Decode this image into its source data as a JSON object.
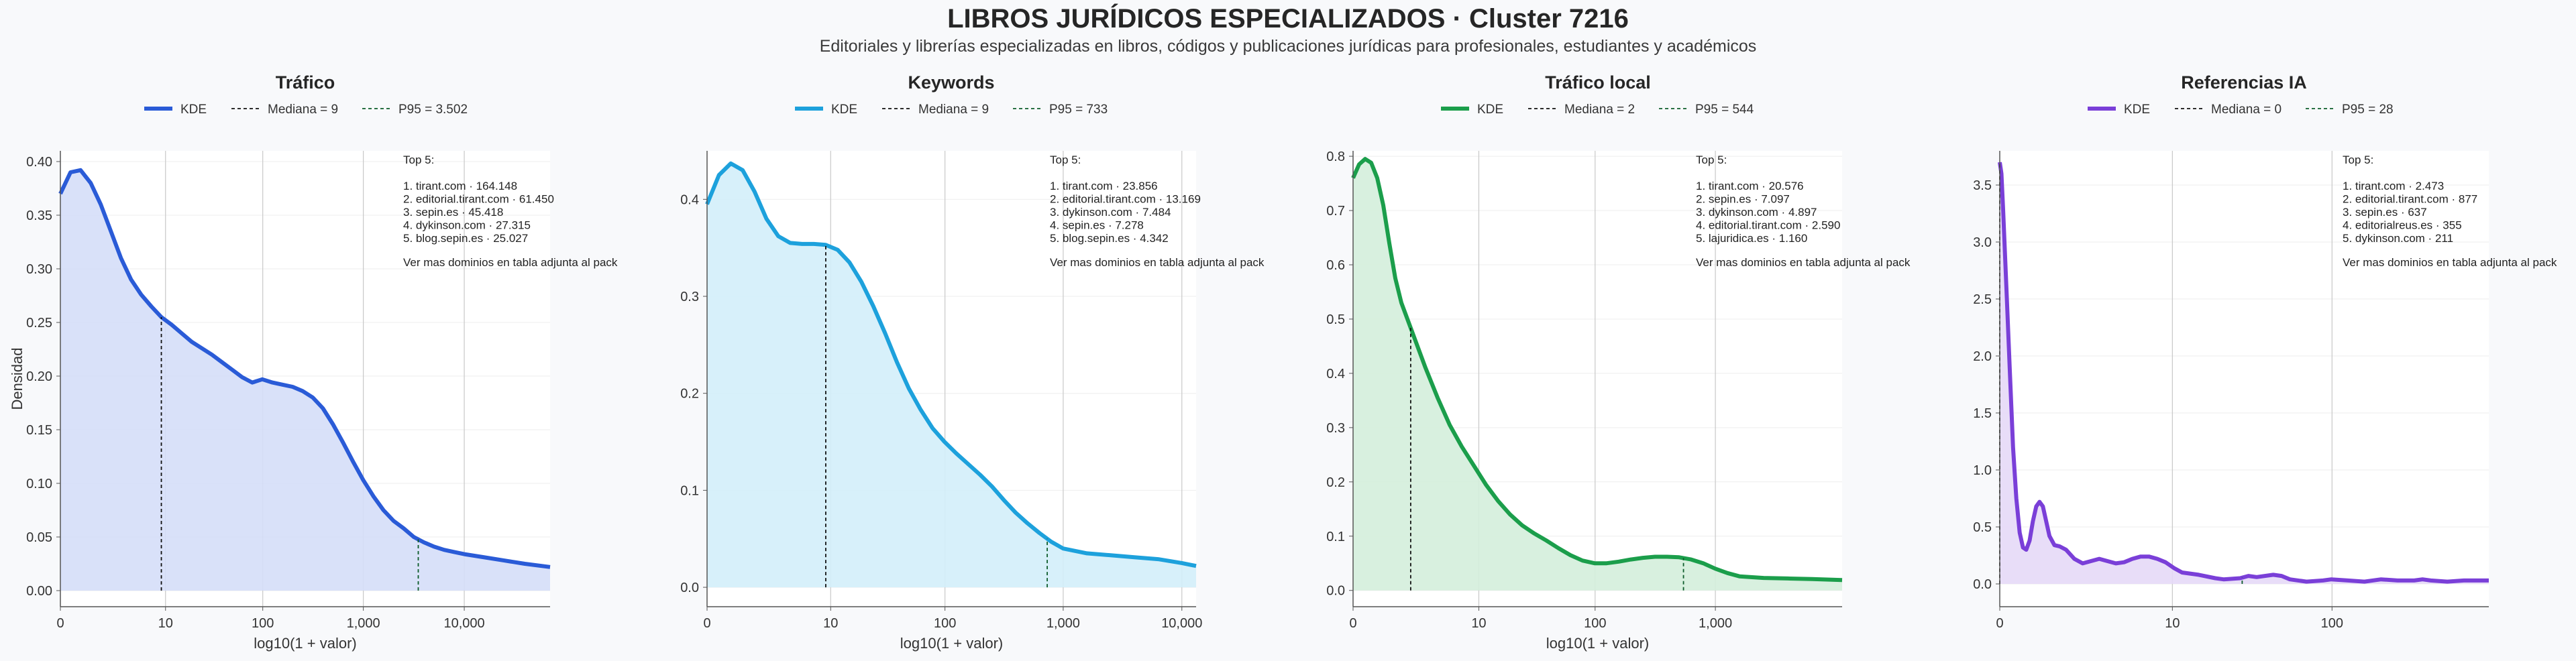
{
  "header": {
    "title": "LIBROS JURÍDICOS ESPECIALIZADOS · Cluster 7216",
    "subtitle": "Editoriales y librerías especializadas en libros, códigos y publicaciones jurídicas para profesionales, estudiantes y académicos"
  },
  "chart_data": [
    {
      "type": "area",
      "title": "Tráfico",
      "color": "#2a5bd7",
      "fill": "#d5def8",
      "xlabel": "log10(1 + valor)",
      "ylabel": "Densidad",
      "x_scale": "log10(1+x)",
      "xlim_log": [
        0,
        4.85
      ],
      "ylim": [
        -0.015,
        0.41
      ],
      "x_ticks": [
        "0",
        "10",
        "100",
        "1,000",
        "10,000"
      ],
      "y_ticks": [
        "0.00",
        "0.05",
        "0.10",
        "0.15",
        "0.20",
        "0.25",
        "0.30",
        "0.35",
        "0.40"
      ],
      "legend": {
        "kde": "KDE",
        "median": "Mediana = 9",
        "p95": "P95 = 3.502"
      },
      "median_value": 9,
      "p95_value": 3502,
      "kde_points_log": [
        [
          0,
          0.37
        ],
        [
          0.1,
          0.39
        ],
        [
          0.2,
          0.392
        ],
        [
          0.3,
          0.38
        ],
        [
          0.4,
          0.36
        ],
        [
          0.5,
          0.335
        ],
        [
          0.6,
          0.31
        ],
        [
          0.7,
          0.29
        ],
        [
          0.8,
          0.276
        ],
        [
          0.9,
          0.265
        ],
        [
          1.0,
          0.255
        ],
        [
          1.1,
          0.248
        ],
        [
          1.2,
          0.24
        ],
        [
          1.3,
          0.232
        ],
        [
          1.4,
          0.226
        ],
        [
          1.5,
          0.22
        ],
        [
          1.6,
          0.213
        ],
        [
          1.7,
          0.206
        ],
        [
          1.8,
          0.199
        ],
        [
          1.9,
          0.194
        ],
        [
          2.0,
          0.197
        ],
        [
          2.1,
          0.194
        ],
        [
          2.2,
          0.192
        ],
        [
          2.3,
          0.19
        ],
        [
          2.4,
          0.186
        ],
        [
          2.5,
          0.18
        ],
        [
          2.6,
          0.17
        ],
        [
          2.7,
          0.155
        ],
        [
          2.8,
          0.138
        ],
        [
          2.9,
          0.12
        ],
        [
          3.0,
          0.103
        ],
        [
          3.1,
          0.088
        ],
        [
          3.2,
          0.075
        ],
        [
          3.3,
          0.065
        ],
        [
          3.4,
          0.058
        ],
        [
          3.5,
          0.05
        ],
        [
          3.6,
          0.045
        ],
        [
          3.7,
          0.041
        ],
        [
          3.8,
          0.038
        ],
        [
          3.9,
          0.036
        ],
        [
          4.0,
          0.034
        ],
        [
          4.2,
          0.031
        ],
        [
          4.4,
          0.028
        ],
        [
          4.6,
          0.025
        ],
        [
          4.85,
          0.022
        ]
      ],
      "top5_title": "Top 5:",
      "top5": [
        "1. tirant.com · 164.148",
        "2. editorial.tirant.com · 61.450",
        "3. sepin.es · 45.418",
        "4. dykinson.com · 27.315",
        "5. blog.sepin.es · 25.027"
      ],
      "note": "Ver mas dominios en tabla adjunta al pack"
    },
    {
      "type": "area",
      "title": "Keywords",
      "color": "#1da1dc",
      "fill": "#d3eefa",
      "xlabel": "log10(1 + valor)",
      "ylabel": "",
      "x_scale": "log10(1+x)",
      "xlim_log": [
        0,
        4.12
      ],
      "ylim": [
        -0.02,
        0.45
      ],
      "x_ticks": [
        "0",
        "10",
        "100",
        "1,000",
        "10,000"
      ],
      "y_ticks": [
        "0.0",
        "0.1",
        "0.2",
        "0.3",
        "0.4"
      ],
      "legend": {
        "kde": "KDE",
        "median": "Mediana = 9",
        "p95": "P95 = 733"
      },
      "median_value": 9,
      "p95_value": 733,
      "kde_points_log": [
        [
          0,
          0.395
        ],
        [
          0.1,
          0.425
        ],
        [
          0.2,
          0.437
        ],
        [
          0.3,
          0.43
        ],
        [
          0.4,
          0.408
        ],
        [
          0.5,
          0.38
        ],
        [
          0.6,
          0.362
        ],
        [
          0.7,
          0.355
        ],
        [
          0.8,
          0.354
        ],
        [
          0.9,
          0.354
        ],
        [
          1.0,
          0.353
        ],
        [
          1.1,
          0.348
        ],
        [
          1.2,
          0.335
        ],
        [
          1.3,
          0.315
        ],
        [
          1.4,
          0.29
        ],
        [
          1.5,
          0.262
        ],
        [
          1.6,
          0.232
        ],
        [
          1.7,
          0.205
        ],
        [
          1.8,
          0.183
        ],
        [
          1.9,
          0.164
        ],
        [
          2.0,
          0.15
        ],
        [
          2.1,
          0.138
        ],
        [
          2.2,
          0.127
        ],
        [
          2.3,
          0.116
        ],
        [
          2.4,
          0.104
        ],
        [
          2.5,
          0.09
        ],
        [
          2.6,
          0.077
        ],
        [
          2.7,
          0.066
        ],
        [
          2.8,
          0.056
        ],
        [
          2.9,
          0.047
        ],
        [
          3.0,
          0.04
        ],
        [
          3.2,
          0.035
        ],
        [
          3.4,
          0.033
        ],
        [
          3.6,
          0.031
        ],
        [
          3.8,
          0.029
        ],
        [
          4.0,
          0.025
        ],
        [
          4.12,
          0.022
        ]
      ],
      "top5_title": "Top 5:",
      "top5": [
        "1. tirant.com · 23.856",
        "2. editorial.tirant.com · 13.169",
        "3. dykinson.com · 7.484",
        "4. sepin.es · 7.278",
        "5. blog.sepin.es · 4.342"
      ],
      "note": "Ver mas dominios en tabla adjunta al pack"
    },
    {
      "type": "area",
      "title": "Tráfico local",
      "color": "#1b9e4b",
      "fill": "#d4eedc",
      "xlabel": "log10(1 + valor)",
      "ylabel": "",
      "x_scale": "log10(1+x)",
      "xlim_log": [
        0,
        4.05
      ],
      "ylim": [
        -0.03,
        0.81
      ],
      "x_ticks": [
        "0",
        "10",
        "100",
        "1,000"
      ],
      "y_ticks": [
        "0.0",
        "0.1",
        "0.2",
        "0.3",
        "0.4",
        "0.5",
        "0.6",
        "0.7",
        "0.8"
      ],
      "legend": {
        "kde": "KDE",
        "median": "Mediana = 2",
        "p95": "P95 = 544"
      },
      "median_value": 2,
      "p95_value": 544,
      "kde_points_log": [
        [
          0,
          0.76
        ],
        [
          0.05,
          0.785
        ],
        [
          0.1,
          0.795
        ],
        [
          0.15,
          0.788
        ],
        [
          0.2,
          0.76
        ],
        [
          0.25,
          0.71
        ],
        [
          0.3,
          0.64
        ],
        [
          0.35,
          0.575
        ],
        [
          0.4,
          0.53
        ],
        [
          0.5,
          0.47
        ],
        [
          0.6,
          0.41
        ],
        [
          0.7,
          0.355
        ],
        [
          0.8,
          0.305
        ],
        [
          0.9,
          0.265
        ],
        [
          1.0,
          0.23
        ],
        [
          1.1,
          0.195
        ],
        [
          1.2,
          0.165
        ],
        [
          1.3,
          0.14
        ],
        [
          1.4,
          0.12
        ],
        [
          1.5,
          0.105
        ],
        [
          1.6,
          0.092
        ],
        [
          1.7,
          0.078
        ],
        [
          1.8,
          0.065
        ],
        [
          1.9,
          0.055
        ],
        [
          2.0,
          0.05
        ],
        [
          2.1,
          0.05
        ],
        [
          2.2,
          0.053
        ],
        [
          2.3,
          0.057
        ],
        [
          2.4,
          0.06
        ],
        [
          2.5,
          0.062
        ],
        [
          2.6,
          0.062
        ],
        [
          2.7,
          0.061
        ],
        [
          2.8,
          0.057
        ],
        [
          2.9,
          0.05
        ],
        [
          3.0,
          0.04
        ],
        [
          3.1,
          0.032
        ],
        [
          3.2,
          0.026
        ],
        [
          3.4,
          0.023
        ],
        [
          3.6,
          0.022
        ],
        [
          3.8,
          0.021
        ],
        [
          4.05,
          0.019
        ]
      ],
      "top5_title": "Top 5:",
      "top5": [
        "1. tirant.com · 20.576",
        "2. sepin.es · 7.097",
        "3. dykinson.com · 4.897",
        "4. editorial.tirant.com · 2.590",
        "5. lajuridica.es · 1.160"
      ],
      "note": "Ver mas dominios en tabla adjunta al pack"
    },
    {
      "type": "area",
      "title": "Referencias IA",
      "color": "#7a3fd8",
      "fill": "#e5d9f7",
      "xlabel": "",
      "ylabel": "",
      "x_scale": "log10(1+x)",
      "xlim_log": [
        0,
        2.95
      ],
      "ylim": [
        -0.2,
        3.8
      ],
      "x_ticks": [
        "0",
        "10",
        "100"
      ],
      "y_ticks": [
        "0.0",
        "0.5",
        "1.0",
        "1.5",
        "2.0",
        "2.5",
        "3.0",
        "3.5"
      ],
      "legend": {
        "kde": "KDE",
        "median": "Mediana = 0",
        "p95": "P95 = 28"
      },
      "median_value": 0,
      "p95_value": 28,
      "kde_points_log": [
        [
          0,
          3.7
        ],
        [
          0.01,
          3.6
        ],
        [
          0.02,
          3.3
        ],
        [
          0.04,
          2.6
        ],
        [
          0.06,
          1.9
        ],
        [
          0.08,
          1.2
        ],
        [
          0.1,
          0.75
        ],
        [
          0.12,
          0.45
        ],
        [
          0.14,
          0.32
        ],
        [
          0.16,
          0.3
        ],
        [
          0.18,
          0.38
        ],
        [
          0.2,
          0.55
        ],
        [
          0.22,
          0.68
        ],
        [
          0.24,
          0.72
        ],
        [
          0.26,
          0.68
        ],
        [
          0.28,
          0.55
        ],
        [
          0.3,
          0.42
        ],
        [
          0.33,
          0.34
        ],
        [
          0.36,
          0.33
        ],
        [
          0.4,
          0.3
        ],
        [
          0.45,
          0.22
        ],
        [
          0.5,
          0.18
        ],
        [
          0.55,
          0.2
        ],
        [
          0.6,
          0.22
        ],
        [
          0.65,
          0.2
        ],
        [
          0.7,
          0.18
        ],
        [
          0.75,
          0.19
        ],
        [
          0.8,
          0.22
        ],
        [
          0.85,
          0.24
        ],
        [
          0.9,
          0.24
        ],
        [
          0.95,
          0.22
        ],
        [
          1.0,
          0.19
        ],
        [
          1.05,
          0.14
        ],
        [
          1.1,
          0.1
        ],
        [
          1.2,
          0.08
        ],
        [
          1.3,
          0.05
        ],
        [
          1.35,
          0.04
        ],
        [
          1.45,
          0.05
        ],
        [
          1.5,
          0.07
        ],
        [
          1.55,
          0.06
        ],
        [
          1.65,
          0.08
        ],
        [
          1.7,
          0.07
        ],
        [
          1.75,
          0.04
        ],
        [
          1.85,
          0.02
        ],
        [
          1.95,
          0.03
        ],
        [
          2.0,
          0.04
        ],
        [
          2.1,
          0.03
        ],
        [
          2.2,
          0.02
        ],
        [
          2.3,
          0.04
        ],
        [
          2.4,
          0.03
        ],
        [
          2.5,
          0.03
        ],
        [
          2.55,
          0.04
        ],
        [
          2.6,
          0.03
        ],
        [
          2.7,
          0.02
        ],
        [
          2.8,
          0.03
        ],
        [
          2.95,
          0.03
        ]
      ],
      "top5_title": "Top 5:",
      "top5": [
        "1. tirant.com · 2.473",
        "2. editorial.tirant.com · 877",
        "3. sepin.es · 637",
        "4. editorialreus.es · 355",
        "5. dykinson.com · 211"
      ],
      "note": "Ver mas dominios en tabla adjunta al pack"
    }
  ]
}
